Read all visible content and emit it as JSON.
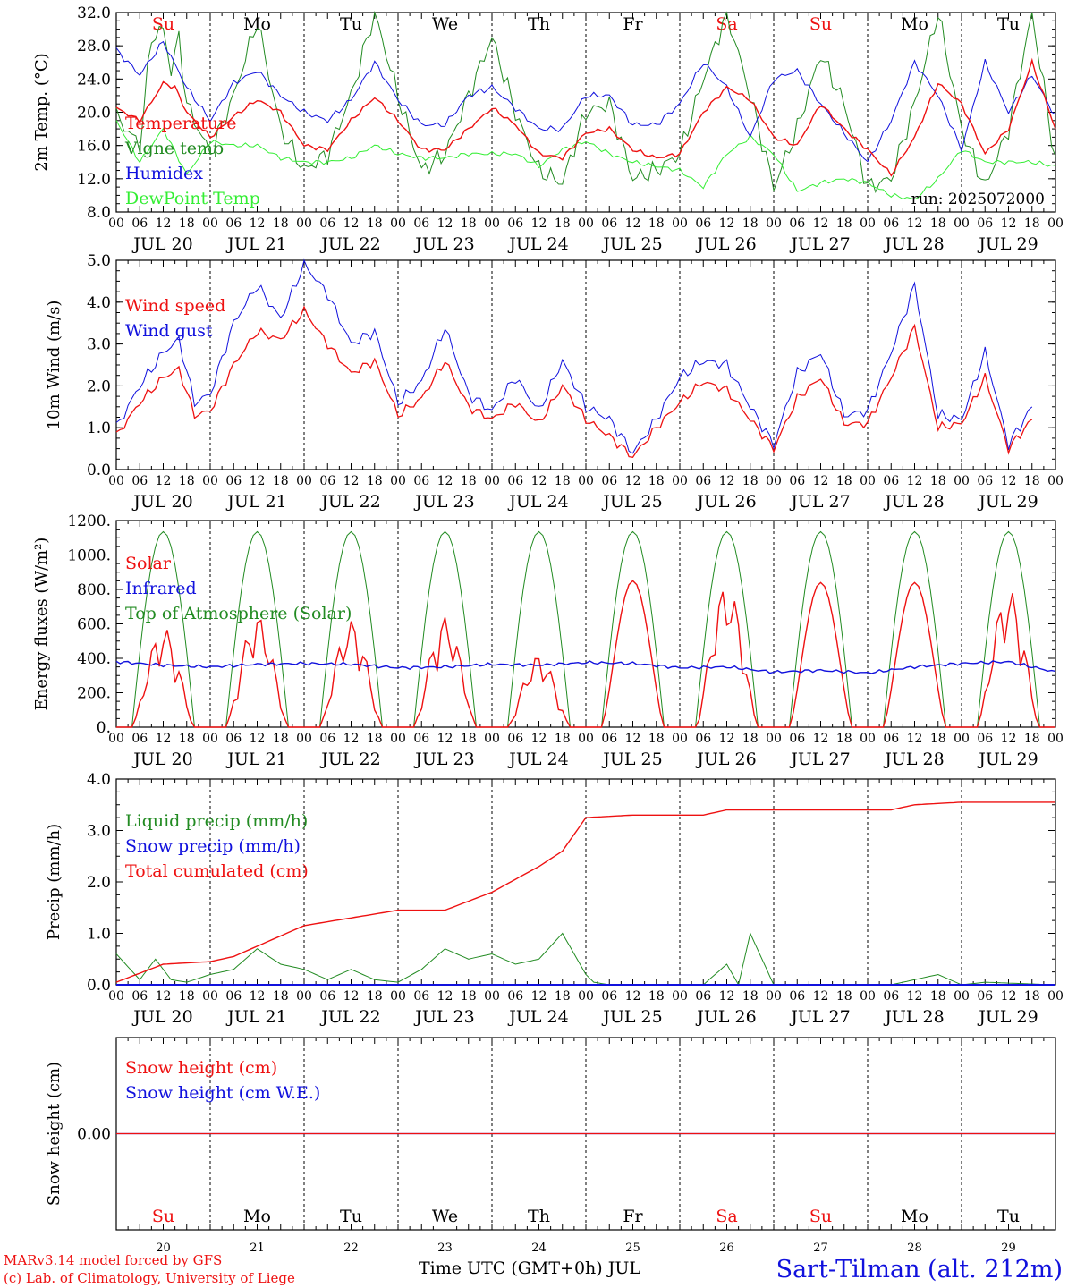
{
  "colors": {
    "red": "#ee1111",
    "green": "#228b22",
    "blue": "#1111dd",
    "lightgreen": "#33ee33",
    "black": "#000000"
  },
  "footer": {
    "model": "MARv3.14 model forced by GFS",
    "lab": "(c) Lab. of Climatology, University of Liege",
    "xlabel": "Time UTC (GMT+0h) JUL",
    "station": "Sart-Tilman (alt. 212m)"
  },
  "hour_labels": [
    "00",
    "06",
    "12",
    "18"
  ],
  "day_dates": [
    "JUL 20",
    "JUL 21",
    "JUL 22",
    "JUL 23",
    "JUL 24",
    "JUL 25",
    "JUL 26",
    "JUL 27",
    "JUL 28",
    "JUL 29"
  ],
  "day_numbers": [
    "20",
    "21",
    "22",
    "23",
    "24",
    "25",
    "26",
    "27",
    "28",
    "29"
  ],
  "weekdays": [
    "Su",
    "Mo",
    "Tu",
    "We",
    "Th",
    "Fr",
    "Sa",
    "Su",
    "Mo",
    "Tu"
  ],
  "weekend_flags": [
    true,
    false,
    false,
    false,
    false,
    false,
    true,
    true,
    false,
    false
  ],
  "chart_data": [
    {
      "type": "line",
      "ylabel": "2m Temp. (°C)",
      "ylim": [
        8,
        32
      ],
      "yticks": [
        "8.0",
        "12.0",
        "16.0",
        "20.0",
        "24.0",
        "28.0",
        "32.0"
      ],
      "annotation": "run: 2025072000",
      "series": [
        {
          "name": "Temperature",
          "color": "red",
          "t": [
            0,
            6,
            12,
            15,
            18,
            24,
            30,
            36,
            42,
            48,
            54,
            60,
            66,
            72,
            78,
            84,
            90,
            96,
            102,
            108,
            114,
            120,
            126,
            132,
            138,
            144,
            150,
            156,
            162,
            168,
            174,
            180,
            186,
            192,
            198,
            204,
            210,
            216,
            222,
            228,
            234,
            240
          ],
          "v": [
            20.5,
            19,
            23.5,
            23,
            20,
            17,
            19.5,
            21.5,
            20,
            16,
            15.5,
            19,
            21.8,
            19,
            15.5,
            15.5,
            18,
            20.5,
            18.5,
            15,
            14.5,
            17.5,
            18,
            15.5,
            14.5,
            15,
            20,
            23,
            21.5,
            17,
            16,
            21,
            18,
            15.5,
            12.5,
            17,
            23.5,
            21,
            15,
            18,
            26,
            18
          ]
        },
        {
          "name": "Vigne temp",
          "color": "green",
          "t": [
            0,
            6,
            9,
            12,
            14,
            16,
            18,
            24,
            30,
            36,
            42,
            48,
            54,
            60,
            66,
            72,
            78,
            84,
            90,
            96,
            102,
            108,
            114,
            120,
            126,
            132,
            138,
            144,
            150,
            156,
            162,
            168,
            174,
            180,
            186,
            192,
            198,
            204,
            210,
            216,
            222,
            228,
            234,
            240
          ],
          "v": [
            19.5,
            16,
            29,
            30,
            25,
            29,
            21,
            15,
            22,
            31,
            18,
            13,
            15,
            22,
            32,
            22,
            13,
            15,
            22,
            29,
            20,
            13,
            11.5,
            20,
            21,
            12,
            13,
            15,
            24,
            32,
            22,
            11,
            18,
            27,
            21,
            11,
            12,
            21,
            32,
            18,
            11,
            18,
            32,
            14
          ]
        },
        {
          "name": "Humidex",
          "color": "blue",
          "t": [
            0,
            6,
            12,
            18,
            24,
            30,
            36,
            42,
            48,
            54,
            60,
            66,
            72,
            78,
            84,
            90,
            96,
            102,
            108,
            114,
            120,
            126,
            132,
            138,
            144,
            150,
            156,
            162,
            168,
            174,
            180,
            186,
            192,
            198,
            204,
            210,
            216,
            222,
            228,
            234,
            240
          ],
          "v": [
            27.5,
            24.5,
            28.5,
            23,
            19,
            23.5,
            25,
            22,
            20,
            19,
            21.5,
            26,
            21.5,
            18.5,
            18.5,
            22,
            23,
            20.5,
            18,
            18,
            22,
            22,
            18.5,
            18.5,
            21,
            26,
            23,
            17,
            24,
            25,
            21,
            17.5,
            14,
            19,
            26,
            22,
            15.5,
            26,
            20,
            24.5,
            19.5
          ]
        },
        {
          "name": "DewPoint Temp",
          "color": "lightgreen",
          "t": [
            0,
            6,
            12,
            18,
            24,
            30,
            36,
            42,
            48,
            54,
            60,
            66,
            72,
            78,
            84,
            90,
            96,
            102,
            108,
            114,
            120,
            126,
            132,
            138,
            144,
            150,
            156,
            162,
            168,
            174,
            180,
            186,
            192,
            198,
            204,
            210,
            216,
            222,
            228,
            234,
            240
          ],
          "v": [
            19,
            14,
            18,
            12.5,
            16.5,
            16,
            16,
            14.5,
            14,
            14,
            14.5,
            16,
            15,
            14.5,
            14.5,
            15,
            15,
            15,
            13.5,
            15.5,
            16.5,
            15,
            14,
            13.5,
            13,
            11,
            15,
            17,
            15,
            10.5,
            11.5,
            12,
            11.5,
            10,
            9.5,
            12,
            15.5,
            14,
            14,
            14,
            13.5
          ]
        }
      ]
    },
    {
      "type": "line",
      "ylabel": "10m Wind (m/s)",
      "ylim": [
        0,
        5
      ],
      "yticks": [
        "0.0",
        "1.0",
        "2.0",
        "3.0",
        "4.0",
        "5.0"
      ],
      "series": [
        {
          "name": "Wind speed",
          "color": "red",
          "t": [
            0,
            6,
            12,
            16,
            20,
            24,
            30,
            36,
            42,
            48,
            54,
            60,
            66,
            72,
            78,
            84,
            90,
            96,
            102,
            108,
            114,
            120,
            126,
            132,
            138,
            144,
            150,
            156,
            162,
            168,
            174,
            180,
            186,
            192,
            198,
            204,
            210,
            216,
            222,
            228,
            234,
            240
          ],
          "v": [
            0.8,
            1.6,
            2.2,
            2.4,
            1.3,
            1.4,
            2.5,
            3.3,
            3.1,
            3.8,
            3.0,
            2.3,
            2.6,
            1.3,
            1.7,
            2.6,
            1.5,
            1.2,
            1.6,
            1.1,
            2.0,
            1.2,
            0.8,
            0.3,
            1.0,
            1.6,
            2.1,
            1.9,
            1.2,
            0.5,
            1.7,
            2.2,
            1.1,
            1.1,
            2.2,
            3.4,
            1.0,
            1.1,
            2.2,
            0.5,
            1.2
          ]
        },
        {
          "name": "Wind gust",
          "color": "blue",
          "t": [
            0,
            6,
            12,
            16,
            20,
            24,
            30,
            36,
            42,
            48,
            54,
            60,
            66,
            72,
            78,
            84,
            90,
            96,
            102,
            108,
            114,
            120,
            126,
            132,
            138,
            144,
            150,
            156,
            162,
            168,
            174,
            180,
            186,
            192,
            198,
            204,
            210,
            216,
            222,
            228,
            234,
            240
          ],
          "v": [
            1.0,
            2.0,
            2.8,
            3.1,
            1.6,
            1.8,
            3.5,
            4.4,
            3.6,
            4.9,
            4.2,
            3.0,
            3.3,
            1.6,
            2.1,
            3.4,
            1.8,
            1.4,
            2.2,
            1.4,
            2.6,
            1.5,
            1.2,
            0.4,
            1.2,
            2.2,
            2.6,
            2.5,
            1.5,
            0.6,
            2.3,
            2.8,
            1.3,
            1.4,
            2.8,
            4.4,
            1.3,
            1.2,
            2.8,
            0.6,
            1.5
          ]
        }
      ]
    },
    {
      "type": "line",
      "ylabel": "Energy fluxes (W/m²)",
      "ylim": [
        0,
        1200
      ],
      "yticks": [
        "0.",
        "200.",
        "400.",
        "600.",
        "800.",
        "1000.",
        "1200."
      ],
      "series": [
        {
          "name": "Solar",
          "color": "red",
          "peaks": [
            580,
            650,
            620,
            640,
            420,
            850,
            830,
            840,
            840,
            800
          ]
        },
        {
          "name": "Infrared",
          "color": "blue",
          "t": [
            0,
            12,
            24,
            36,
            48,
            60,
            72,
            84,
            96,
            108,
            120,
            132,
            144,
            156,
            168,
            180,
            192,
            204,
            216,
            228,
            240
          ],
          "v": [
            380,
            360,
            350,
            365,
            370,
            365,
            345,
            350,
            365,
            360,
            375,
            370,
            345,
            350,
            320,
            330,
            315,
            350,
            370,
            380,
            320
          ]
        },
        {
          "name": "Top of Atmosphere (Solar)",
          "color": "green",
          "peak": 1135
        }
      ]
    },
    {
      "type": "line",
      "ylabel": "Precip (mm/h)",
      "ylim": [
        0,
        4
      ],
      "yticks": [
        "0.0",
        "1.0",
        "2.0",
        "3.0",
        "4.0"
      ],
      "series": [
        {
          "name": "Liquid precip (mm/h)",
          "color": "green",
          "t": [
            0,
            6,
            10,
            14,
            18,
            24,
            30,
            36,
            42,
            48,
            54,
            60,
            66,
            72,
            78,
            84,
            90,
            96,
            102,
            108,
            114,
            120,
            122,
            126,
            138,
            150,
            156,
            159,
            162,
            168,
            186,
            198,
            204,
            210,
            216,
            222,
            240
          ],
          "v": [
            0.6,
            0.1,
            0.5,
            0.1,
            0.05,
            0.2,
            0.3,
            0.7,
            0.4,
            0.3,
            0.1,
            0.3,
            0.1,
            0.05,
            0.3,
            0.7,
            0.5,
            0.6,
            0.4,
            0.5,
            1.0,
            0.2,
            0.05,
            0,
            0,
            0,
            0.4,
            0,
            1.0,
            0,
            0,
            0,
            0.1,
            0.2,
            0,
            0.05,
            0
          ]
        },
        {
          "name": "Snow precip (mm/h)",
          "color": "blue",
          "t": [
            0,
            240
          ],
          "v": [
            0,
            0
          ]
        },
        {
          "name": "Total cumulated (cm)",
          "color": "red",
          "t": [
            0,
            12,
            24,
            30,
            36,
            48,
            60,
            72,
            84,
            96,
            108,
            114,
            120,
            132,
            150,
            156,
            168,
            192,
            198,
            204,
            216,
            240
          ],
          "v": [
            0.05,
            0.4,
            0.45,
            0.55,
            0.75,
            1.15,
            1.3,
            1.45,
            1.45,
            1.8,
            2.3,
            2.6,
            3.25,
            3.3,
            3.3,
            3.4,
            3.4,
            3.4,
            3.4,
            3.5,
            3.55,
            3.55
          ]
        }
      ]
    },
    {
      "type": "line",
      "ylabel": "Snow height (cm)",
      "ylim": [
        -1,
        1
      ],
      "yticks": [
        "0.00"
      ],
      "series": [
        {
          "name": "Snow height (cm)",
          "color": "red",
          "t": [
            0,
            240
          ],
          "v": [
            0,
            0
          ]
        },
        {
          "name": "Snow height (cm W.E.)",
          "color": "blue",
          "t": [
            0,
            240
          ],
          "v": [
            0,
            0
          ]
        }
      ]
    }
  ]
}
